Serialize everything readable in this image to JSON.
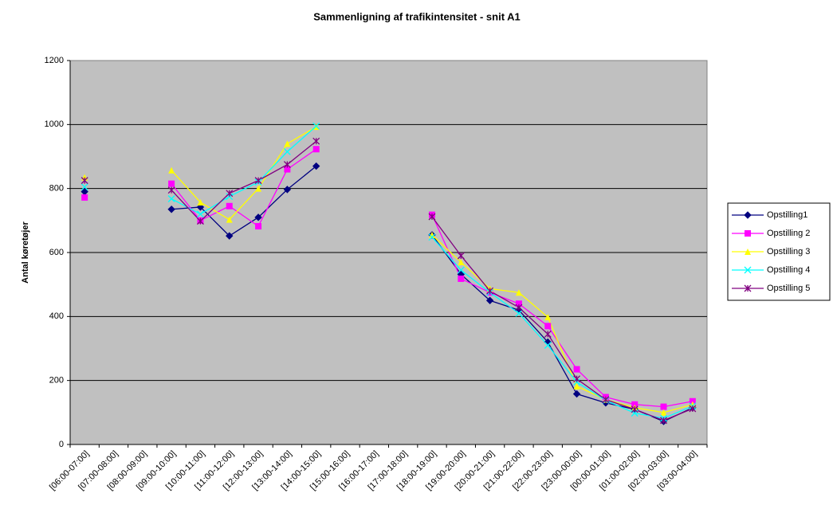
{
  "chart_data": {
    "type": "line",
    "title": "Sammenligning af trafikintensitet - snit A1",
    "y_label": "Antal køretøjer",
    "categories": [
      "[06:00-07:00]",
      "[07:00-08:00]",
      "[08:00-09:00]",
      "[09:00-10:00]",
      "[10:00-11:00]",
      "[11:00-12:00]",
      "[12:00-13:00]",
      "[13:00-14:00]",
      "[14:00-15:00]",
      "[15:00-16:00]",
      "[16:00-17:00]",
      "[17:00-18:00]",
      "[18:00-19:00]",
      "[19:00-20:00]",
      "[20:00-21:00]",
      "[21:00-22:00]",
      "[22:00-23:00]",
      "[23:00-00:00]",
      "[00:00-01:00]",
      "[01:00-02:00]",
      "[02:00-03:00]",
      "[03:00-04:00]"
    ],
    "series": [
      {
        "name": "Opstilling1",
        "color": "#000080",
        "marker": "diamond",
        "values": [
          790,
          null,
          null,
          735,
          742,
          652,
          710,
          797,
          870,
          null,
          null,
          null,
          655,
          532,
          450,
          420,
          320,
          158,
          130,
          110,
          72,
          115
        ]
      },
      {
        "name": "Opstilling 2",
        "color": "#ff00ff",
        "marker": "square",
        "values": [
          772,
          null,
          null,
          815,
          700,
          745,
          682,
          860,
          923,
          null,
          null,
          null,
          718,
          518,
          475,
          440,
          370,
          235,
          148,
          125,
          118,
          135
        ]
      },
      {
        "name": "Opstilling 3",
        "color": "#ffff00",
        "marker": "triangle",
        "values": [
          835,
          null,
          null,
          857,
          757,
          703,
          800,
          940,
          993,
          null,
          null,
          null,
          655,
          570,
          487,
          475,
          398,
          182,
          140,
          115,
          100,
          125
        ]
      },
      {
        "name": "Opstilling 4",
        "color": "#00ffff",
        "marker": "x",
        "values": [
          805,
          null,
          null,
          768,
          720,
          775,
          820,
          915,
          995,
          null,
          null,
          null,
          648,
          545,
          475,
          410,
          310,
          195,
          138,
          98,
          82,
          120
        ]
      },
      {
        "name": "Opstilling 5",
        "color": "#800080",
        "marker": "star",
        "values": [
          825,
          null,
          null,
          795,
          698,
          785,
          825,
          875,
          948,
          null,
          null,
          null,
          712,
          590,
          480,
          428,
          345,
          205,
          140,
          110,
          75,
          112
        ]
      }
    ],
    "ylim": [
      0,
      1200
    ],
    "yticks": [
      0,
      200,
      400,
      600,
      800,
      1000,
      1200
    ],
    "grid": true,
    "legend": "right"
  }
}
